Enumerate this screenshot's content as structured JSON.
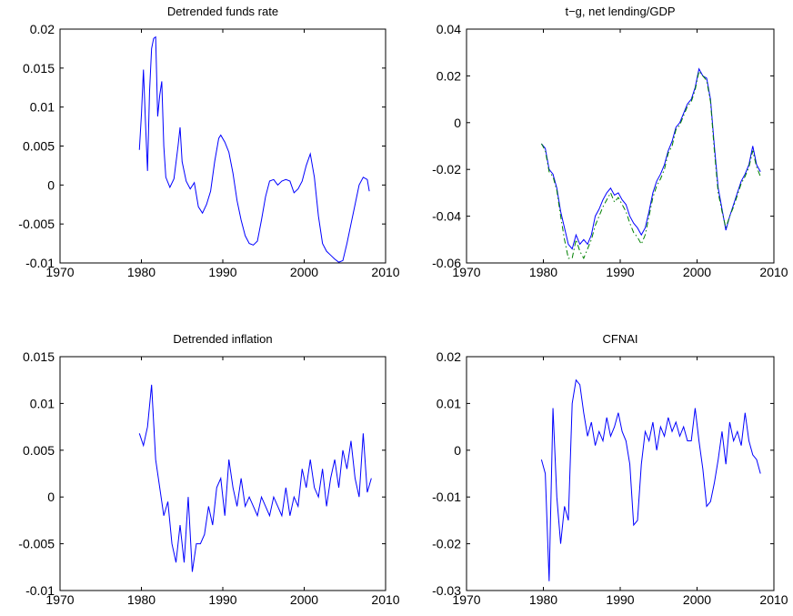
{
  "chart_data": [
    {
      "type": "line",
      "title": "Detrended funds rate",
      "color": "#0000ff",
      "linestyle": "solid",
      "x": [
        1979.75,
        1980,
        1980.25,
        1980.5,
        1980.75,
        1981,
        1981.25,
        1981.5,
        1981.75,
        1982,
        1982.25,
        1982.5,
        1982.75,
        1983,
        1983.5,
        1984,
        1984.5,
        1984.75,
        1985,
        1985.5,
        1986,
        1986.5,
        1987,
        1987.5,
        1988,
        1988.5,
        1989,
        1989.5,
        1989.75,
        1990.25,
        1990.75,
        1991.25,
        1991.75,
        1992.25,
        1992.75,
        1993.25,
        1993.75,
        1994.25,
        1994.75,
        1995.25,
        1995.75,
        1996.25,
        1996.75,
        1997.25,
        1997.75,
        1998.25,
        1998.75,
        1999.25,
        1999.75,
        2000.25,
        2000.75,
        2001.25,
        2001.75,
        2002.25,
        2002.75,
        2003.25,
        2003.75,
        2004.25,
        2004.75,
        2005.25,
        2005.75,
        2006.25,
        2006.75,
        2007.25,
        2007.75,
        2008
      ],
      "values": [
        0.0045,
        0.009,
        0.0148,
        0.008,
        0.0018,
        0.012,
        0.0175,
        0.0188,
        0.019,
        0.0088,
        0.0115,
        0.0133,
        0.005,
        0.001,
        -0.0003,
        0.0008,
        0.005,
        0.0074,
        0.003,
        0.0005,
        -0.0005,
        0.0003,
        -0.0028,
        -0.0036,
        -0.0025,
        -0.0008,
        0.003,
        0.006,
        0.0064,
        0.0055,
        0.0042,
        0.0015,
        -0.002,
        -0.0045,
        -0.0065,
        -0.0075,
        -0.0077,
        -0.0072,
        -0.0045,
        -0.0015,
        0.0005,
        0.0007,
        0.0,
        0.0005,
        0.0007,
        0.0005,
        -0.001,
        -0.0005,
        0.0005,
        0.0025,
        0.004,
        0.001,
        -0.004,
        -0.0075,
        -0.0085,
        -0.009,
        -0.0095,
        -0.0099,
        -0.0097,
        -0.0075,
        -0.005,
        -0.0025,
        0.0,
        0.001,
        0.0007,
        -0.0008
      ],
      "xlim": [
        1970,
        2010
      ],
      "xticks": [
        1970,
        1980,
        1990,
        2000,
        2010
      ],
      "ylim": [
        -0.01,
        0.02
      ],
      "yticks": [
        -0.01,
        -0.005,
        0,
        0.005,
        0.01,
        0.015,
        0.02
      ]
    },
    {
      "type": "line",
      "title": "t−g, net lending/GDP",
      "x": [
        1979.75,
        1980.25,
        1980.75,
        1981.25,
        1981.75,
        1982.25,
        1982.75,
        1983.25,
        1983.75,
        1984.25,
        1984.75,
        1985.25,
        1985.75,
        1986.25,
        1986.75,
        1987.25,
        1987.75,
        1988.25,
        1988.75,
        1989.25,
        1989.75,
        1990.25,
        1990.75,
        1991.25,
        1991.75,
        1992.25,
        1992.75,
        1993.25,
        1993.75,
        1994.25,
        1994.75,
        1995.25,
        1995.75,
        1996.25,
        1996.75,
        1997.25,
        1997.75,
        1998.25,
        1998.75,
        1999.25,
        1999.75,
        2000.25,
        2000.75,
        2001.25,
        2001.75,
        2002.25,
        2002.75,
        2003.25,
        2003.75,
        2004.25,
        2004.75,
        2005.25,
        2005.75,
        2006.25,
        2006.75,
        2007.25,
        2007.75,
        2008.25
      ],
      "series": [
        {
          "color": "#0000ff",
          "linestyle": "solid",
          "values": [
            -0.009,
            -0.011,
            -0.02,
            -0.022,
            -0.028,
            -0.038,
            -0.045,
            -0.052,
            -0.054,
            -0.048,
            -0.052,
            -0.05,
            -0.052,
            -0.048,
            -0.04,
            -0.037,
            -0.033,
            -0.03,
            -0.028,
            -0.031,
            -0.03,
            -0.033,
            -0.035,
            -0.04,
            -0.043,
            -0.045,
            -0.048,
            -0.045,
            -0.038,
            -0.03,
            -0.025,
            -0.022,
            -0.018,
            -0.012,
            -0.008,
            -0.002,
            0.0,
            0.004,
            0.008,
            0.01,
            0.015,
            0.023,
            0.02,
            0.019,
            0.01,
            -0.01,
            -0.028,
            -0.037,
            -0.046,
            -0.04,
            -0.035,
            -0.03,
            -0.025,
            -0.022,
            -0.018,
            -0.01,
            -0.018,
            -0.021
          ]
        },
        {
          "color": "#008000",
          "linestyle": "dashdot",
          "values": [
            -0.009,
            -0.012,
            -0.021,
            -0.023,
            -0.029,
            -0.04,
            -0.05,
            -0.058,
            -0.058,
            -0.05,
            -0.055,
            -0.058,
            -0.054,
            -0.05,
            -0.044,
            -0.04,
            -0.036,
            -0.033,
            -0.03,
            -0.034,
            -0.032,
            -0.035,
            -0.038,
            -0.043,
            -0.047,
            -0.049,
            -0.052,
            -0.048,
            -0.04,
            -0.032,
            -0.027,
            -0.024,
            -0.02,
            -0.013,
            -0.01,
            -0.003,
            -0.001,
            0.003,
            0.007,
            0.009,
            0.014,
            0.022,
            0.02,
            0.018,
            0.009,
            -0.012,
            -0.03,
            -0.038,
            -0.045,
            -0.04,
            -0.036,
            -0.031,
            -0.026,
            -0.023,
            -0.019,
            -0.012,
            -0.019,
            -0.023
          ]
        }
      ],
      "xlim": [
        1970,
        2010
      ],
      "xticks": [
        1970,
        1980,
        1990,
        2000,
        2010
      ],
      "ylim": [
        -0.06,
        0.04
      ],
      "yticks": [
        -0.06,
        -0.04,
        -0.02,
        0,
        0.02,
        0.04
      ]
    },
    {
      "type": "line",
      "title": "Detrended inflation",
      "color": "#0000ff",
      "linestyle": "solid",
      "x": [
        1979.75,
        1980.25,
        1980.75,
        1981.25,
        1981.75,
        1982.25,
        1982.75,
        1983.25,
        1983.75,
        1984.25,
        1984.75,
        1985.25,
        1985.75,
        1986.25,
        1986.75,
        1987.25,
        1987.75,
        1988.25,
        1988.75,
        1989.25,
        1989.75,
        1990.25,
        1990.75,
        1991.25,
        1991.75,
        1992.25,
        1992.75,
        1993.25,
        1993.75,
        1994.25,
        1994.75,
        1995.25,
        1995.75,
        1996.25,
        1996.75,
        1997.25,
        1997.75,
        1998.25,
        1998.75,
        1999.25,
        1999.75,
        2000.25,
        2000.75,
        2001.25,
        2001.75,
        2002.25,
        2002.75,
        2003.25,
        2003.75,
        2004.25,
        2004.75,
        2005.25,
        2005.75,
        2006.25,
        2006.75,
        2007.25,
        2007.75,
        2008.25
      ],
      "values": [
        0.0068,
        0.0055,
        0.0075,
        0.012,
        0.004,
        0.001,
        -0.002,
        -0.0005,
        -0.005,
        -0.007,
        -0.003,
        -0.007,
        0.0,
        -0.008,
        -0.005,
        -0.005,
        -0.004,
        -0.001,
        -0.003,
        0.001,
        0.002,
        -0.002,
        0.004,
        0.001,
        -0.001,
        0.002,
        -0.001,
        0.0,
        -0.001,
        -0.002,
        0.0,
        -0.001,
        -0.002,
        0.0,
        -0.001,
        -0.002,
        0.001,
        -0.002,
        0.0,
        -0.001,
        0.003,
        0.001,
        0.004,
        0.001,
        0.0,
        0.003,
        -0.001,
        0.002,
        0.004,
        0.001,
        0.005,
        0.003,
        0.006,
        0.002,
        0.0,
        0.0068,
        0.0005,
        0.002
      ],
      "xlim": [
        1970,
        2010
      ],
      "xticks": [
        1970,
        1980,
        1990,
        2000,
        2010
      ],
      "ylim": [
        -0.01,
        0.015
      ],
      "yticks": [
        -0.01,
        -0.005,
        0,
        0.005,
        0.01,
        0.015
      ]
    },
    {
      "type": "line",
      "title": "CFNAI",
      "color": "#0000ff",
      "linestyle": "solid",
      "x": [
        1979.75,
        1980.25,
        1980.75,
        1981.25,
        1981.75,
        1982.25,
        1982.75,
        1983.25,
        1983.75,
        1984.25,
        1984.75,
        1985.25,
        1985.75,
        1986.25,
        1986.75,
        1987.25,
        1987.75,
        1988.25,
        1988.75,
        1989.25,
        1989.75,
        1990.25,
        1990.75,
        1991.25,
        1991.75,
        1992.25,
        1992.75,
        1993.25,
        1993.75,
        1994.25,
        1994.75,
        1995.25,
        1995.75,
        1996.25,
        1996.75,
        1997.25,
        1997.75,
        1998.25,
        1998.75,
        1999.25,
        1999.75,
        2000.25,
        2000.75,
        2001.25,
        2001.75,
        2002.25,
        2002.75,
        2003.25,
        2003.75,
        2004.25,
        2004.75,
        2005.25,
        2005.75,
        2006.25,
        2006.75,
        2007.25,
        2007.75,
        2008.25
      ],
      "values": [
        -0.002,
        -0.005,
        -0.028,
        0.009,
        -0.01,
        -0.02,
        -0.012,
        -0.015,
        0.01,
        0.015,
        0.014,
        0.008,
        0.003,
        0.006,
        0.001,
        0.004,
        0.002,
        0.007,
        0.003,
        0.005,
        0.008,
        0.004,
        0.002,
        -0.003,
        -0.016,
        -0.015,
        -0.003,
        0.004,
        0.002,
        0.006,
        0.0,
        0.005,
        0.003,
        0.007,
        0.004,
        0.006,
        0.003,
        0.005,
        0.002,
        0.002,
        0.009,
        0.002,
        -0.004,
        -0.012,
        -0.011,
        -0.007,
        -0.002,
        0.004,
        -0.003,
        0.006,
        0.002,
        0.004,
        0.001,
        0.008,
        0.002,
        -0.001,
        -0.002,
        -0.005
      ],
      "xlim": [
        1970,
        2010
      ],
      "xticks": [
        1970,
        1980,
        1990,
        2000,
        2010
      ],
      "ylim": [
        -0.03,
        0.02
      ],
      "yticks": [
        -0.03,
        -0.02,
        -0.01,
        0,
        0.01,
        0.02
      ]
    }
  ]
}
